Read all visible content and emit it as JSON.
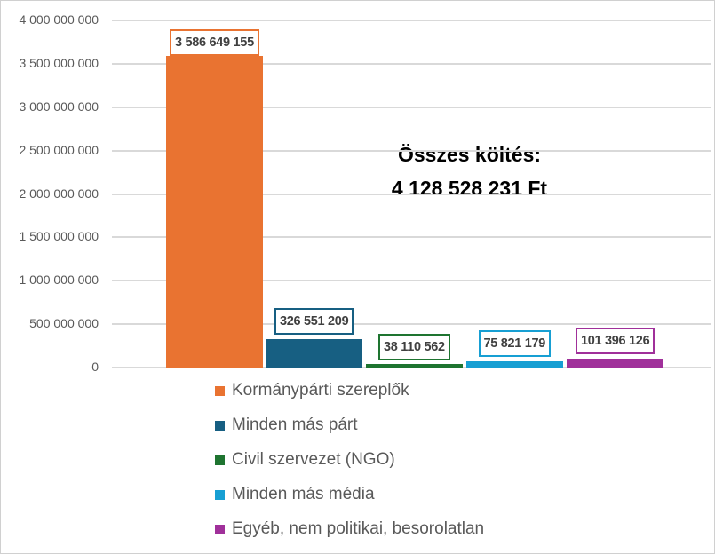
{
  "chart_data": {
    "type": "bar",
    "title": "",
    "xlabel": "",
    "ylabel": "",
    "ylim": [
      0,
      4000000000
    ],
    "y_ticks": [
      "0",
      "500 000 000",
      "1 000 000 000",
      "1 500 000 000",
      "2 000 000 000",
      "2 500 000 000",
      "3 000 000 000",
      "3 500 000 000",
      "4 000 000 000"
    ],
    "grid": true,
    "legend_position": "bottom",
    "series": [
      {
        "name": "Kormánypárti szereplők",
        "value": 3586649155,
        "label": "3 586 649 155",
        "color": "#E97331"
      },
      {
        "name": "Minden más párt",
        "value": 326551209,
        "label": "326 551 209",
        "color": "#175F82"
      },
      {
        "name": "Civil szervezet (NGO)",
        "value": 38110562,
        "label": "38 110 562",
        "color": "#1E7430"
      },
      {
        "name": "Minden más média",
        "value": 75821179,
        "label": "75 821 179",
        "color": "#179FD3"
      },
      {
        "name": "Egyéb, nem politikai, besorolatlan",
        "value": 101396126,
        "label": "101 396 126",
        "color": "#A0309A"
      }
    ],
    "annotation": {
      "line1": "Összes költés:",
      "line2": "4 128 528 231 Ft"
    }
  }
}
